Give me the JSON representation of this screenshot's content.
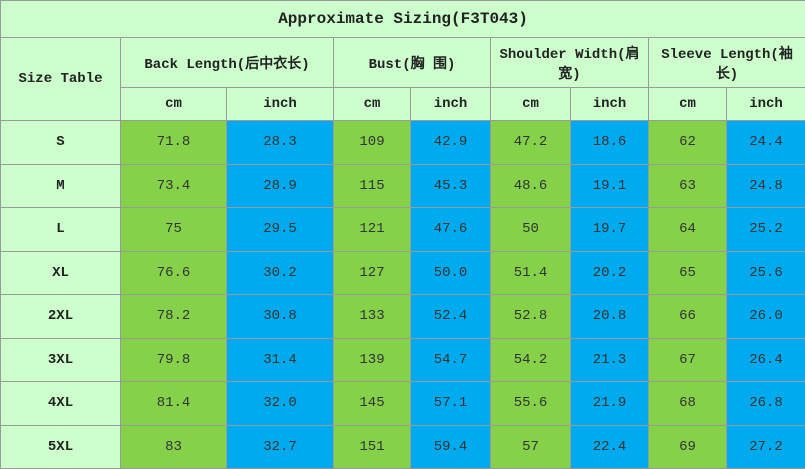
{
  "table": {
    "title": "Approximate Sizing(F3T043)",
    "corner": "Size Table",
    "groups": [
      "Back Length(后中衣长)",
      "Bust(胸 围)",
      "Shoulder Width(肩宽)",
      "Sleeve Length(袖 长)"
    ],
    "units": [
      "cm",
      "inch",
      "cm",
      "inch",
      "cm",
      "inch",
      "cm",
      "inch"
    ],
    "rows": [
      [
        "S",
        "71.8",
        "28.3",
        "109",
        "42.9",
        "47.2",
        "18.6",
        "62",
        "24.4"
      ],
      [
        "M",
        "73.4",
        "28.9",
        "115",
        "45.3",
        "48.6",
        "19.1",
        "63",
        "24.8"
      ],
      [
        "L",
        "75",
        "29.5",
        "121",
        "47.6",
        "50",
        "19.7",
        "64",
        "25.2"
      ],
      [
        "XL",
        "76.6",
        "30.2",
        "127",
        "50.0",
        "51.4",
        "20.2",
        "65",
        "25.6"
      ],
      [
        "2XL",
        "78.2",
        "30.8",
        "133",
        "52.4",
        "52.8",
        "20.8",
        "66",
        "26.0"
      ],
      [
        "3XL",
        "79.8",
        "31.4",
        "139",
        "54.7",
        "54.2",
        "21.3",
        "67",
        "26.4"
      ],
      [
        "4XL",
        "81.4",
        "32.0",
        "145",
        "57.1",
        "55.6",
        "21.9",
        "68",
        "26.8"
      ],
      [
        "5XL",
        "83",
        "32.7",
        "151",
        "59.4",
        "57",
        "22.4",
        "69",
        "27.2"
      ]
    ]
  }
}
